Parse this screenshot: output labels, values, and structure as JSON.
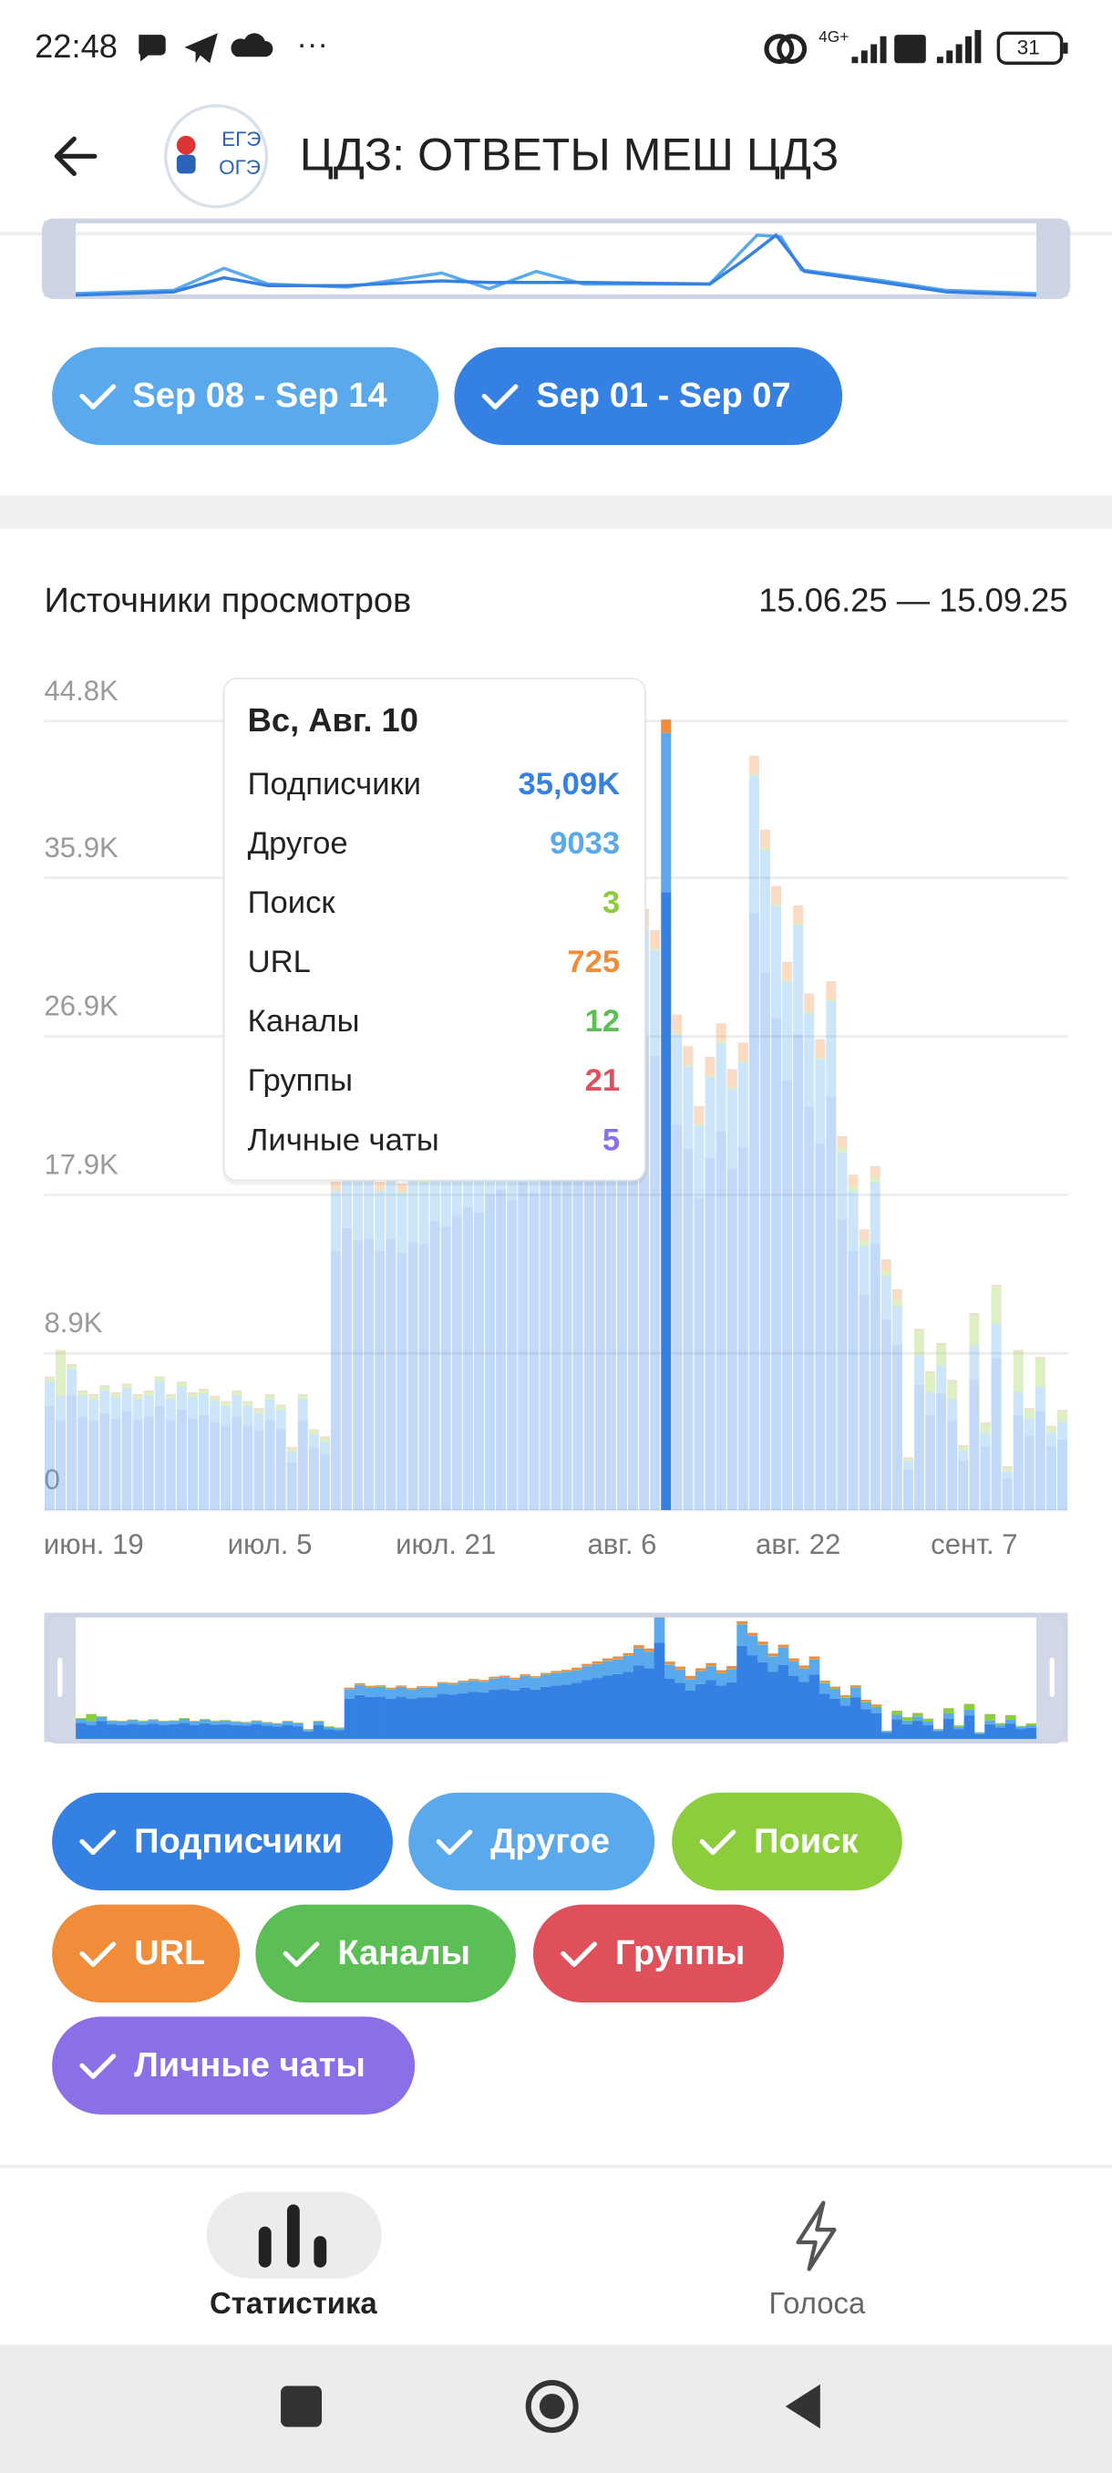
{
  "status_bar": {
    "time": "22:48",
    "network": "4G+",
    "battery": "31"
  },
  "header": {
    "title": "ЦДЗ: ОТВЕТЫ МЕШ ЦДЗ",
    "logo_top": "ЕГЭ",
    "logo_bottom": "ОГЭ"
  },
  "week_chips": [
    "Sep 08 - Sep 14",
    "Sep 01 - Sep 07"
  ],
  "section": {
    "title": "Источники просмотров",
    "range": "15.06.25 — 15.09.25"
  },
  "chart_data": {
    "type": "bar",
    "stacked": true,
    "grid": true,
    "categories": [
      null,
      null,
      null,
      null,
      "июн. 19",
      null,
      null,
      null,
      null,
      null,
      null,
      null,
      null,
      null,
      null,
      null,
      null,
      null,
      null,
      null,
      "июл. 5",
      null,
      null,
      null,
      null,
      null,
      null,
      null,
      null,
      null,
      null,
      null,
      null,
      null,
      null,
      null,
      "июл. 21",
      null,
      null,
      null,
      null,
      null,
      null,
      null,
      null,
      null,
      null,
      null,
      null,
      null,
      null,
      null,
      "авг. 6",
      null,
      null,
      null,
      null,
      null,
      null,
      null,
      null,
      null,
      null,
      null,
      null,
      null,
      null,
      null,
      "авг. 22",
      null,
      null,
      null,
      null,
      null,
      null,
      null,
      null,
      null,
      null,
      null,
      null,
      null,
      null,
      null,
      "сент. 7",
      null,
      null,
      null,
      null,
      null,
      null,
      null,
      null
    ],
    "ylim": [
      0,
      44800
    ],
    "yticks": [
      0,
      {
        "value": 8900,
        "label": "8.9K"
      },
      {
        "value": 17900,
        "label": "17.9K"
      },
      {
        "value": 26900,
        "label": "26.9K"
      },
      {
        "value": 35900,
        "label": "35.9K"
      },
      {
        "value": 44800,
        "label": "44.8K"
      }
    ],
    "highlight": 56,
    "tooltip": {
      "title": "Вс, Авг. 10",
      "value_label": "35,09K"
    },
    "series": [
      {
        "name": "Подписчики",
        "color": "#3580e3",
        "values": [
          5900,
          5100,
          6500,
          5300,
          5100,
          5500,
          5200,
          5600,
          5100,
          5300,
          5900,
          5100,
          5700,
          5200,
          5400,
          5000,
          4800,
          5300,
          4800,
          4500,
          5100,
          4600,
          2700,
          5100,
          3500,
          3200,
          14700,
          16000,
          15300,
          15400,
          14700,
          15400,
          14600,
          15200,
          15100,
          16400,
          16100,
          16700,
          17200,
          16900,
          17900,
          18200,
          17600,
          18600,
          18000,
          19000,
          19500,
          19800,
          20400,
          21500,
          22200,
          23100,
          23600,
          24500,
          26800,
          25800,
          35090,
          21900,
          20500,
          17700,
          20000,
          21500,
          19400,
          20600,
          33900,
          30500,
          27900,
          24400,
          27000,
          22900,
          20800,
          23500,
          16500,
          14700,
          12200,
          15100,
          10800,
          9400,
          2300,
          7100,
          5400,
          6600,
          5100,
          2800,
          7400,
          3600,
          8600,
          1800,
          5400,
          4200,
          5600,
          3600,
          4000
        ]
      },
      {
        "name": "Другое",
        "color": "#5aa9ec",
        "values": [
          1400,
          1400,
          1500,
          1200,
          1200,
          1300,
          1200,
          1300,
          1200,
          1200,
          1400,
          1200,
          1300,
          1200,
          1200,
          1200,
          1100,
          1200,
          1100,
          1000,
          1200,
          1100,
          600,
          1200,
          800,
          700,
          3400,
          3700,
          3500,
          3600,
          3400,
          3500,
          3400,
          3500,
          3500,
          3800,
          3700,
          3900,
          4000,
          3900,
          4100,
          4200,
          4100,
          4300,
          4200,
          4400,
          4500,
          4600,
          4700,
          5000,
          5100,
          5300,
          5400,
          5700,
          6200,
          6000,
          9033,
          5100,
          4700,
          4100,
          4600,
          5000,
          4500,
          4800,
          7800,
          7000,
          6400,
          5600,
          6200,
          5300,
          4800,
          5400,
          3800,
          3400,
          2800,
          3500,
          2500,
          2200,
          500,
          1700,
          1300,
          1600,
          1200,
          600,
          1900,
          800,
          2000,
          400,
          1300,
          1000,
          1400,
          800,
          1000
        ]
      },
      {
        "name": "Поиск",
        "color": "#8ccd3c",
        "values": [
          200,
          2500,
          200,
          200,
          200,
          200,
          200,
          200,
          200,
          200,
          200,
          200,
          200,
          200,
          200,
          200,
          200,
          200,
          200,
          200,
          200,
          200,
          200,
          200,
          200,
          200,
          100,
          100,
          100,
          100,
          100,
          100,
          100,
          100,
          100,
          100,
          100,
          100,
          100,
          100,
          100,
          100,
          100,
          100,
          100,
          100,
          100,
          100,
          100,
          100,
          100,
          100,
          100,
          100,
          100,
          100,
          3,
          100,
          100,
          100,
          100,
          100,
          100,
          100,
          100,
          100,
          100,
          100,
          100,
          100,
          100,
          100,
          300,
          300,
          300,
          300,
          300,
          300,
          100,
          1400,
          1100,
          1200,
          1000,
          200,
          1800,
          500,
          2100,
          200,
          2300,
          500,
          1600,
          300,
          600
        ]
      },
      {
        "name": "URL",
        "color": "#f08c3a",
        "values": [
          50,
          50,
          50,
          50,
          50,
          50,
          50,
          50,
          50,
          50,
          50,
          50,
          50,
          50,
          50,
          50,
          50,
          50,
          50,
          50,
          50,
          50,
          50,
          50,
          50,
          50,
          400,
          400,
          400,
          400,
          400,
          400,
          400,
          400,
          400,
          400,
          500,
          500,
          500,
          500,
          500,
          500,
          500,
          500,
          500,
          500,
          600,
          600,
          700,
          700,
          800,
          800,
          900,
          900,
          1000,
          1000,
          725,
          1000,
          1000,
          1000,
          1000,
          1000,
          1000,
          1000,
          1000,
          1000,
          1000,
          1000,
          1000,
          1000,
          1000,
          1000,
          600,
          600,
          600,
          600,
          600,
          600,
          50,
          50,
          50,
          50,
          50,
          50,
          50,
          50,
          50,
          50,
          50,
          50,
          50,
          50,
          50
        ]
      },
      {
        "name": "Каналы",
        "color": "#5cbf55",
        "values": [
          10,
          10,
          10,
          10,
          10,
          10,
          10,
          10,
          10,
          10,
          10,
          10,
          10,
          10,
          10,
          10,
          10,
          10,
          10,
          10,
          10,
          10,
          10,
          10,
          10,
          10,
          10,
          10,
          10,
          10,
          10,
          10,
          10,
          10,
          10,
          10,
          10,
          10,
          10,
          10,
          10,
          10,
          10,
          10,
          10,
          10,
          10,
          10,
          10,
          10,
          10,
          10,
          10,
          10,
          10,
          10,
          12,
          10,
          10,
          10,
          10,
          10,
          10,
          10,
          10,
          10,
          10,
          10,
          10,
          10,
          10,
          10,
          10,
          10,
          10,
          10,
          10,
          10,
          10,
          10,
          10,
          10,
          10,
          10,
          10,
          10,
          10,
          10,
          10,
          10,
          10,
          10,
          10
        ]
      },
      {
        "name": "Группы",
        "color": "#e0505a",
        "values": [
          20,
          20,
          20,
          20,
          20,
          20,
          20,
          20,
          20,
          20,
          20,
          20,
          20,
          20,
          20,
          20,
          20,
          20,
          20,
          20,
          20,
          20,
          20,
          20,
          20,
          20,
          20,
          20,
          20,
          20,
          20,
          20,
          20,
          20,
          20,
          20,
          20,
          20,
          20,
          20,
          20,
          20,
          20,
          20,
          20,
          20,
          20,
          20,
          20,
          20,
          20,
          20,
          20,
          20,
          20,
          20,
          21,
          20,
          20,
          20,
          20,
          20,
          20,
          20,
          20,
          20,
          20,
          20,
          20,
          20,
          20,
          20,
          20,
          20,
          20,
          20,
          20,
          20,
          20,
          20,
          20,
          20,
          20,
          20,
          20,
          20,
          20,
          20,
          20,
          20,
          20,
          20,
          20
        ]
      },
      {
        "name": "Личные чаты",
        "color": "#8a6fe6",
        "values": [
          5,
          5,
          5,
          5,
          5,
          5,
          5,
          5,
          5,
          5,
          5,
          5,
          5,
          5,
          5,
          5,
          5,
          5,
          5,
          5,
          5,
          5,
          5,
          5,
          5,
          5,
          5,
          5,
          5,
          5,
          5,
          5,
          5,
          5,
          5,
          5,
          5,
          5,
          5,
          5,
          5,
          5,
          5,
          5,
          5,
          5,
          5,
          5,
          5,
          5,
          5,
          5,
          5,
          5,
          5,
          5,
          5,
          5,
          5,
          5,
          5,
          5,
          5,
          5,
          5,
          5,
          5,
          5,
          5,
          5,
          5,
          5,
          5,
          5,
          5,
          5,
          5,
          5,
          5,
          5,
          5,
          5,
          5,
          5,
          5,
          5,
          5,
          5,
          5,
          5,
          5,
          5,
          5
        ]
      }
    ]
  },
  "bottom_nav": [
    "Статистика",
    "Голоса"
  ]
}
